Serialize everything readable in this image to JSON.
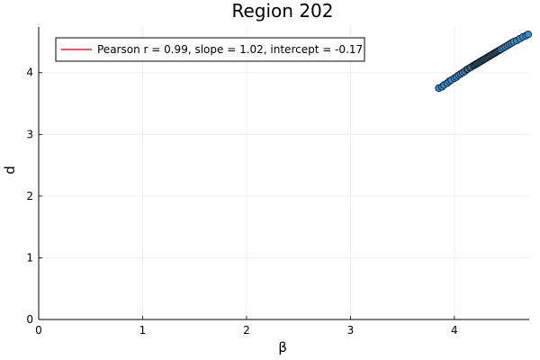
{
  "chart_data": {
    "type": "scatter",
    "title": "Region 202",
    "xlabel": "β",
    "ylabel": "d",
    "xlim": [
      0,
      4.72
    ],
    "ylim": [
      0,
      4.74
    ],
    "x_ticks": [
      "0",
      "1",
      "2",
      "3",
      "4"
    ],
    "y_ticks": [
      "0",
      "1",
      "2",
      "3",
      "4"
    ],
    "grid": true,
    "legend": {
      "position": "top-left",
      "label": "Pearson r = 0.99, slope = 1.02, intercept = -0.17"
    },
    "fit_line": {
      "slope": 1.02,
      "intercept": -0.17,
      "x_range": [
        3.85,
        4.72
      ]
    },
    "points": {
      "x": [
        3.85,
        3.88,
        3.9,
        3.93,
        3.95,
        3.97,
        4.0,
        4.02,
        4.04,
        4.06,
        4.08,
        4.1,
        4.12,
        4.13,
        4.15,
        4.16,
        4.18,
        4.19,
        4.2,
        4.21,
        4.22,
        4.23,
        4.24,
        4.25,
        4.26,
        4.27,
        4.28,
        4.29,
        4.3,
        4.31,
        4.32,
        4.33,
        4.34,
        4.35,
        4.36,
        4.37,
        4.38,
        4.39,
        4.4,
        4.41,
        4.42,
        4.43,
        4.44,
        4.45,
        4.47,
        4.49,
        4.51,
        4.53,
        4.55,
        4.57,
        4.6,
        4.63,
        4.66,
        4.69,
        4.71
      ],
      "y": [
        3.75,
        3.77,
        3.8,
        3.83,
        3.86,
        3.88,
        3.91,
        3.93,
        3.96,
        3.98,
        4.0,
        4.02,
        4.05,
        4.06,
        4.08,
        4.09,
        4.11,
        4.12,
        4.13,
        4.14,
        4.15,
        4.16,
        4.17,
        4.18,
        4.19,
        4.2,
        4.21,
        4.22,
        4.23,
        4.24,
        4.25,
        4.26,
        4.27,
        4.28,
        4.29,
        4.3,
        4.31,
        4.32,
        4.33,
        4.34,
        4.35,
        4.36,
        4.37,
        4.38,
        4.4,
        4.42,
        4.44,
        4.46,
        4.48,
        4.5,
        4.52,
        4.55,
        4.58,
        4.6,
        4.62
      ]
    },
    "colors": {
      "points": "#2f8fd8",
      "point_edge": "#1a1a1a",
      "fit_line": "#e8251f",
      "grid": "#ececec",
      "axis": "#000000"
    }
  }
}
